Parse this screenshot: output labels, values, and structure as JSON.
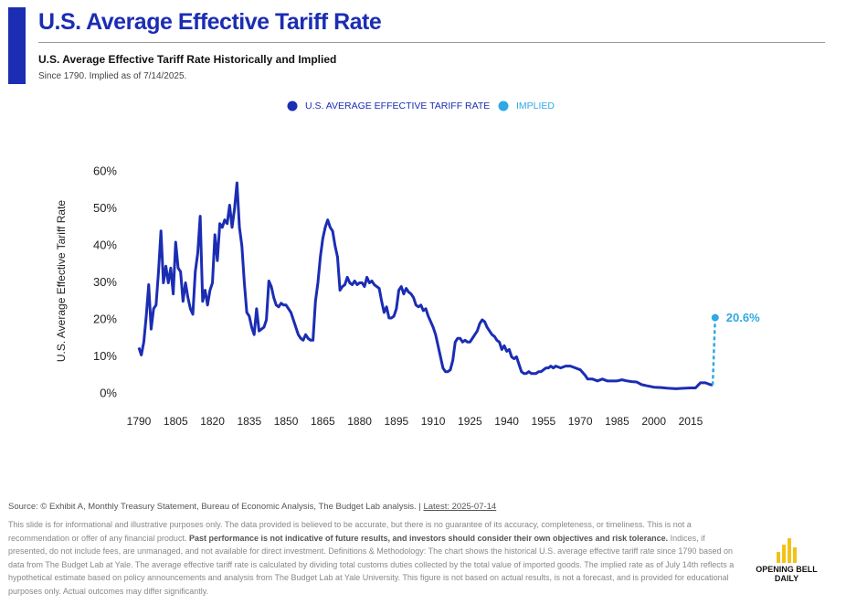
{
  "header": {
    "title": "U.S. Average Effective Tariff Rate",
    "subtitle": "U.S. Average Effective Tariff Rate Historically and Implied",
    "note": "Since 1790. Implied as of 7/14/2025."
  },
  "chart_data": {
    "type": "line",
    "y_label": "U.S. Average Effective Tariff Rate",
    "xlim": [
      1785,
      2030
    ],
    "xticks": [
      1790,
      1805,
      1820,
      1835,
      1850,
      1865,
      1880,
      1895,
      1910,
      1925,
      1940,
      1955,
      1970,
      1985,
      2000,
      2015
    ],
    "ylim": [
      0,
      60
    ],
    "yticks": [
      {
        "value": 0,
        "label": "0%"
      },
      {
        "value": 10,
        "label": "10%"
      },
      {
        "value": 20,
        "label": "20%"
      },
      {
        "value": 30,
        "label": "30%"
      },
      {
        "value": 40,
        "label": "40%"
      },
      {
        "value": 50,
        "label": "50%"
      },
      {
        "value": 60,
        "label": "60%"
      }
    ],
    "grid": false,
    "legend": "top",
    "series": [
      {
        "name": "U.S. AVERAGE EFFECTIVE TARIFF RATE",
        "color": "#1b2db3",
        "dash": false,
        "x": [
          1790,
          1791,
          1792,
          1793,
          1794,
          1795,
          1796,
          1797,
          1798,
          1799,
          1800,
          1801,
          1802,
          1803,
          1804,
          1805,
          1806,
          1807,
          1808,
          1809,
          1810,
          1811,
          1812,
          1813,
          1814,
          1815,
          1816,
          1817,
          1818,
          1819,
          1820,
          1821,
          1822,
          1823,
          1824,
          1825,
          1826,
          1827,
          1828,
          1829,
          1830,
          1831,
          1832,
          1833,
          1834,
          1835,
          1836,
          1837,
          1838,
          1839,
          1840,
          1841,
          1842,
          1843,
          1844,
          1845,
          1846,
          1847,
          1848,
          1849,
          1850,
          1851,
          1852,
          1853,
          1854,
          1855,
          1856,
          1857,
          1858,
          1859,
          1860,
          1861,
          1862,
          1863,
          1864,
          1865,
          1866,
          1867,
          1868,
          1869,
          1870,
          1871,
          1872,
          1873,
          1874,
          1875,
          1876,
          1877,
          1878,
          1879,
          1880,
          1881,
          1882,
          1883,
          1884,
          1885,
          1886,
          1887,
          1888,
          1889,
          1890,
          1891,
          1892,
          1893,
          1894,
          1895,
          1896,
          1897,
          1898,
          1899,
          1900,
          1901,
          1902,
          1903,
          1904,
          1905,
          1906,
          1907,
          1908,
          1909,
          1910,
          1911,
          1912,
          1913,
          1914,
          1915,
          1916,
          1917,
          1918,
          1919,
          1920,
          1921,
          1922,
          1923,
          1924,
          1925,
          1926,
          1927,
          1928,
          1929,
          1930,
          1931,
          1932,
          1933,
          1934,
          1935,
          1936,
          1937,
          1938,
          1939,
          1940,
          1941,
          1942,
          1943,
          1944,
          1945,
          1946,
          1947,
          1948,
          1949,
          1950,
          1951,
          1952,
          1953,
          1954,
          1955,
          1956,
          1957,
          1958,
          1959,
          1960,
          1962,
          1964,
          1966,
          1968,
          1970,
          1972,
          1973,
          1975,
          1977,
          1979,
          1981,
          1983,
          1985,
          1987,
          1989,
          1991,
          1993,
          1995,
          1997,
          2000,
          2003,
          2006,
          2009,
          2012,
          2015,
          2017,
          2018,
          2019,
          2021,
          2023,
          2024
        ],
        "values": [
          12.5,
          10.5,
          14,
          21,
          29.5,
          17.5,
          23,
          24,
          33,
          44,
          30,
          34.5,
          30,
          34,
          27,
          41,
          34,
          33,
          25,
          30,
          26,
          23,
          21.5,
          33,
          38,
          48,
          25,
          28,
          24,
          28,
          30,
          43,
          36,
          46,
          45,
          47,
          46,
          51,
          45,
          50,
          57,
          45,
          40,
          30,
          22,
          21,
          18,
          16,
          23,
          17,
          17.5,
          18,
          20,
          30.5,
          29,
          26,
          24,
          23.5,
          24.5,
          24,
          24,
          23,
          22,
          20,
          18,
          16,
          15,
          14.5,
          16,
          15,
          14.5,
          14.5,
          25,
          30,
          37,
          42,
          45,
          47,
          45,
          44,
          40,
          37,
          28,
          29,
          29.5,
          31.5,
          30,
          29.5,
          30.5,
          29.5,
          30,
          30,
          29,
          31.5,
          30,
          30.5,
          29.5,
          29,
          28.5,
          25,
          22,
          23.5,
          20.5,
          20.5,
          21,
          23,
          28,
          29,
          27,
          28.5,
          27.5,
          27,
          26,
          24,
          23.5,
          24,
          22.5,
          23,
          21,
          19.5,
          18,
          16,
          13,
          10,
          7,
          6,
          6,
          6.5,
          9,
          14,
          15,
          15,
          14,
          14.5,
          14,
          14,
          15,
          16,
          17,
          19,
          20,
          19.5,
          18,
          17,
          16,
          15.5,
          14.5,
          14,
          12,
          13,
          11.5,
          12,
          10,
          9.5,
          10,
          8,
          6,
          5.5,
          5.5,
          6,
          5.5,
          5.5,
          5.5,
          6,
          6,
          6.5,
          7,
          7,
          7.5,
          7,
          7.5,
          7,
          7.5,
          7.5,
          7,
          6.5,
          5,
          4,
          4,
          3.5,
          4,
          3.5,
          3.5,
          3.5,
          3.8,
          3.5,
          3.3,
          3.2,
          2.5,
          2.2,
          1.8,
          1.7,
          1.5,
          1.4,
          1.5,
          1.6,
          1.6,
          2.3,
          3,
          3,
          2.5,
          2.4
        ]
      },
      {
        "name": "IMPLIED",
        "color": "#2ea8e6",
        "dash": true,
        "x": [
          2025
        ],
        "values": [
          20.6
        ],
        "value_labels": [
          "20.6%"
        ]
      }
    ]
  },
  "footer": {
    "source": "Source: © Exhibit A, Monthly Treasury Statement, Bureau of Economic Analysis, The Budget Lab analysis. |",
    "latest": "Latest: 2025-07-14",
    "disclaimer_start": "This slide is for informational and illustrative purposes only. The data provided is believed to be accurate, but there is no guarantee of its accuracy, completeness, or timeliness. This is not a recommendation or offer of any financial product.",
    "disclaimer_bold": "Past performance is not indicative of future results, and investors should consider their own objectives and risk tolerance.",
    "disclaimer_end": "Indices, if presented, do not include fees, are unmanaged, and not available for direct investment. Definitions & Methodology: The chart shows the historical U.S. average effective tariff rate since 1790 based on data from The Budget Lab at Yale. The average effective tariff rate is calculated by dividing total customs duties collected by the total value of imported goods. The implied rate as of July 14th reflects a hypothetical estimate based on policy announcements and analysis from The Budget Lab at Yale University. This figure is not based on actual results, is not a forecast, and is provided for educational purposes only. Actual outcomes may differ significantly.",
    "logo": [
      "OPENING BELL",
      "DAILY"
    ]
  }
}
